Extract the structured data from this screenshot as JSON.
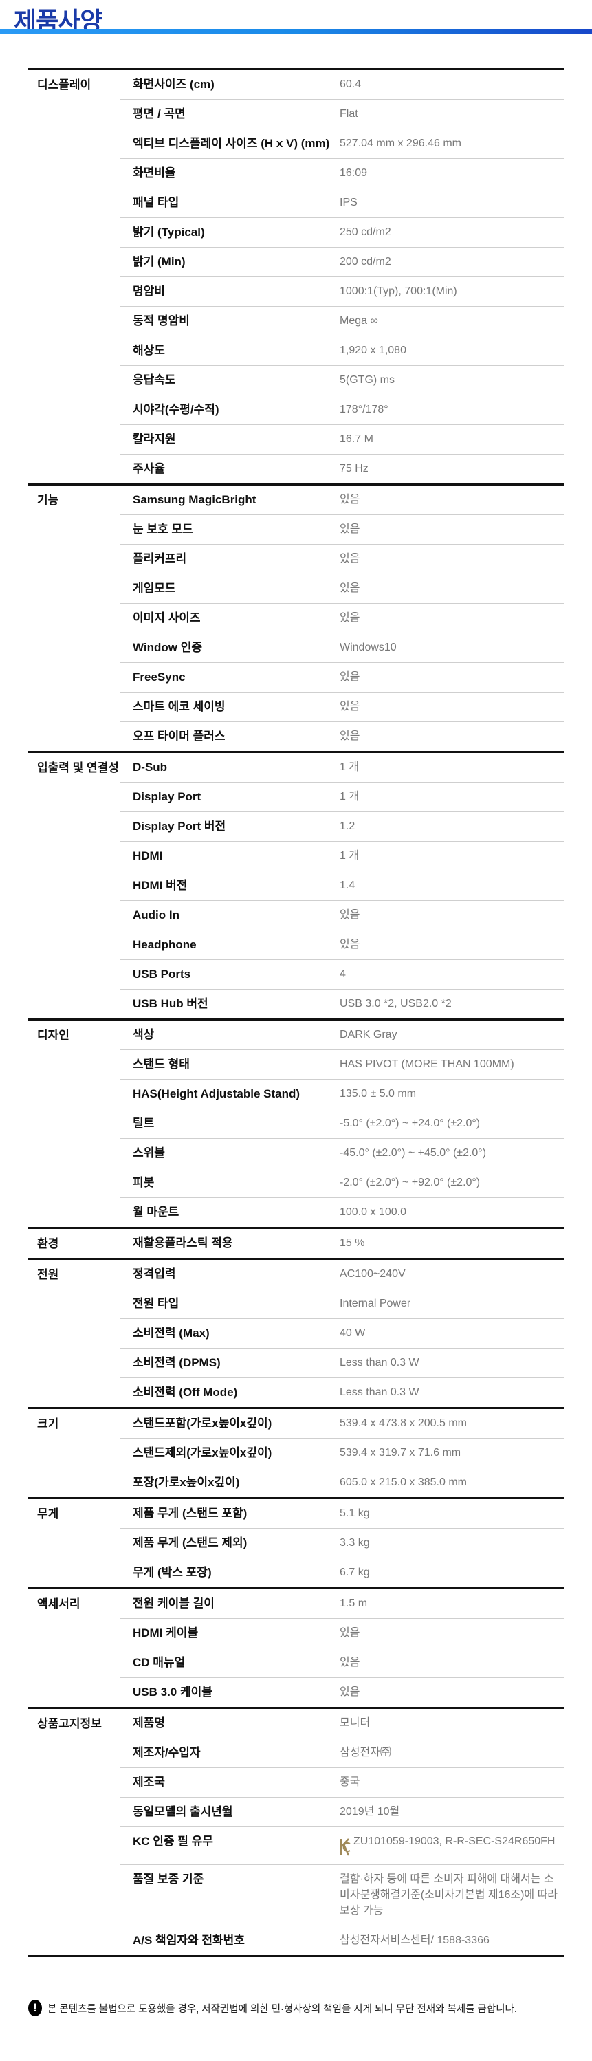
{
  "page": {
    "title": "제품사양",
    "accent": "#1a3aa8"
  },
  "sections": [
    {
      "category": "디스플레이",
      "rows": [
        {
          "label": "화면사이즈 (cm)",
          "value": "60.4"
        },
        {
          "label": "평면 / 곡면",
          "value": "Flat"
        },
        {
          "label": "엑티브 디스플레이 사이즈 (H x V) (mm)",
          "value": "527.04 mm x 296.46 mm"
        },
        {
          "label": "화면비율",
          "value": "16:09"
        },
        {
          "label": "패널 타입",
          "value": "IPS"
        },
        {
          "label": "밝기 (Typical)",
          "value": "250 cd/m2"
        },
        {
          "label": "밝기 (Min)",
          "value": "200 cd/m2"
        },
        {
          "label": "명암비",
          "value": "1000:1(Typ), 700:1(Min)"
        },
        {
          "label": "동적 명암비",
          "value": "Mega ∞"
        },
        {
          "label": "해상도",
          "value": "1,920 x 1,080"
        },
        {
          "label": "응답속도",
          "value": "5(GTG) ms"
        },
        {
          "label": "시야각(수평/수직)",
          "value": "178°/178°"
        },
        {
          "label": "칼라지원",
          "value": "16.7 M"
        },
        {
          "label": "주사율",
          "value": "75 Hz"
        }
      ]
    },
    {
      "category": "기능",
      "rows": [
        {
          "label": "Samsung MagicBright",
          "value": "있음"
        },
        {
          "label": "눈 보호 모드",
          "value": "있음"
        },
        {
          "label": "플리커프리",
          "value": "있음"
        },
        {
          "label": "게임모드",
          "value": "있음"
        },
        {
          "label": "이미지 사이즈",
          "value": "있음"
        },
        {
          "label": "Window 인증",
          "value": "Windows10"
        },
        {
          "label": "FreeSync",
          "value": "있음"
        },
        {
          "label": "스마트 에코 세이빙",
          "value": "있음"
        },
        {
          "label": "오프 타이머 플러스",
          "value": "있음"
        }
      ]
    },
    {
      "category": "입출력 및 연결성",
      "rows": [
        {
          "label": "D-Sub",
          "value": "1 개"
        },
        {
          "label": "Display Port",
          "value": "1 개"
        },
        {
          "label": "Display Port 버전",
          "value": "1.2"
        },
        {
          "label": "HDMI",
          "value": "1 개"
        },
        {
          "label": "HDMI 버전",
          "value": "1.4"
        },
        {
          "label": "Audio In",
          "value": "있음"
        },
        {
          "label": "Headphone",
          "value": "있음"
        },
        {
          "label": "USB Ports",
          "value": "4"
        },
        {
          "label": "USB Hub 버전",
          "value": "USB 3.0 *2, USB2.0 *2"
        }
      ]
    },
    {
      "category": "디자인",
      "rows": [
        {
          "label": "색상",
          "value": "DARK Gray"
        },
        {
          "label": "스탠드 형태",
          "value": "HAS PIVOT (MORE THAN 100MM)"
        },
        {
          "label": "HAS(Height Adjustable Stand)",
          "value": "135.0 ± 5.0 mm"
        },
        {
          "label": "틸트",
          "value": "-5.0° (±2.0°) ~ +24.0° (±2.0°)"
        },
        {
          "label": "스위블",
          "value": "-45.0° (±2.0°) ~ +45.0° (±2.0°)"
        },
        {
          "label": "피봇",
          "value": "-2.0° (±2.0°) ~ +92.0° (±2.0°)"
        },
        {
          "label": "월 마운트",
          "value": "100.0 x 100.0"
        }
      ]
    },
    {
      "category": "환경",
      "rows": [
        {
          "label": "재활용플라스틱 적용",
          "value": "15 %"
        }
      ]
    },
    {
      "category": "전원",
      "rows": [
        {
          "label": "정격입력",
          "value": "AC100~240V"
        },
        {
          "label": "전원 타입",
          "value": "Internal Power"
        },
        {
          "label": "소비전력 (Max)",
          "value": "40 W"
        },
        {
          "label": "소비전력 (DPMS)",
          "value": "Less than 0.3 W"
        },
        {
          "label": "소비전력 (Off Mode)",
          "value": "Less than 0.3 W"
        }
      ]
    },
    {
      "category": "크기",
      "rows": [
        {
          "label": "스탠드포함(가로x높이x깊이)",
          "value": "539.4 x 473.8 x 200.5 mm"
        },
        {
          "label": "스탠드제외(가로x높이x깊이)",
          "value": "539.4 x 319.7 x 71.6 mm"
        },
        {
          "label": "포장(가로x높이x깊이)",
          "value": "605.0 x 215.0 x 385.0 mm"
        }
      ]
    },
    {
      "category": "무게",
      "rows": [
        {
          "label": "제품 무게 (스탠드 포함)",
          "value": "5.1 kg"
        },
        {
          "label": "제품 무게 (스탠드 제외)",
          "value": "3.3 kg"
        },
        {
          "label": "무게 (박스 포장)",
          "value": "6.7 kg"
        }
      ]
    },
    {
      "category": "액세서리",
      "rows": [
        {
          "label": "전원 케이블 길이",
          "value": "1.5 m"
        },
        {
          "label": "HDMI 케이블",
          "value": "있음"
        },
        {
          "label": "CD 매뉴얼",
          "value": "있음"
        },
        {
          "label": "USB 3.0 케이블",
          "value": "있음"
        }
      ]
    },
    {
      "category": "상품고지정보",
      "rows": [
        {
          "label": "제품명",
          "value": "모니터"
        },
        {
          "label": "제조자/수입자",
          "value": "삼성전자㈜"
        },
        {
          "label": "제조국",
          "value": "중국"
        },
        {
          "label": "동일모델의 출시년월",
          "value": "2019년 10월"
        },
        {
          "label": "KC 인증 필 유무",
          "value": "ZU101059-19003, R-R-SEC-S24R650FH",
          "icon": "kc-mark-icon"
        },
        {
          "label": "품질 보증 기준",
          "value": "결함·하자 등에 따른 소비자 피해에 대해서는 소비자분쟁해결기준(소비자기본법 제16조)에 따라 보상 가능"
        },
        {
          "label": "A/S 책임자와 전화번호",
          "value": "삼성전자서비스센터/ 1588-3366"
        }
      ]
    }
  ],
  "notice": {
    "icon": "exclamation-icon",
    "text": "본 콘텐츠를 불법으로 도용했을 경우, 저작권법에 의한 민·형사상의 책임을 지게 되니 무단 전재와 복제를 금합니다."
  }
}
